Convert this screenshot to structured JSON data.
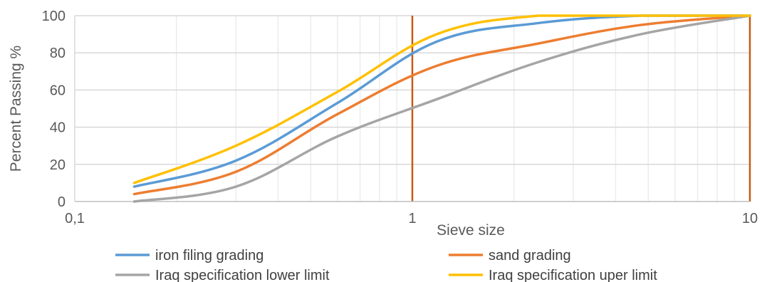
{
  "chart_data": {
    "type": "line",
    "title": "",
    "xlabel": "Sieve size",
    "ylabel": "Percent Passing %",
    "x_scale": "log",
    "xlim": [
      0.1,
      10
    ],
    "ylim": [
      0,
      100
    ],
    "x_ticks": [
      0.1,
      1,
      10
    ],
    "x_tick_labels": [
      "0,1",
      "1",
      "10"
    ],
    "y_ticks": [
      0,
      20,
      40,
      60,
      80,
      100
    ],
    "y_tick_labels": [
      "0",
      "20",
      "40",
      "60",
      "80",
      "100"
    ],
    "grid": "major and minor vertical, major horizontal",
    "legend_position": "bottom",
    "reference_lines": [
      {
        "x": 1,
        "color": "#c55a11"
      },
      {
        "x": 10,
        "color": "#c55a11"
      }
    ],
    "series": [
      {
        "name": "iron filing grading",
        "color": "#5b9bd5",
        "x": [
          0.15,
          0.3,
          0.6,
          1.18,
          2.36,
          4.75,
          10
        ],
        "y": [
          8,
          22,
          53,
          86,
          96,
          100,
          100
        ]
      },
      {
        "name": "sand grading",
        "color": "#ed7d31",
        "x": [
          0.15,
          0.3,
          0.6,
          1.18,
          2.36,
          4.75,
          10
        ],
        "y": [
          4,
          16,
          47,
          73,
          85,
          95,
          100
        ]
      },
      {
        "name": "Iraq specification lower limit",
        "color": "#a5a5a5",
        "x": [
          0.15,
          0.3,
          0.6,
          1.18,
          2.36,
          4.75,
          10
        ],
        "y": [
          0,
          8,
          35,
          55,
          75,
          90,
          100
        ]
      },
      {
        "name": "Iraq specification uper limit",
        "color": "#ffc000",
        "x": [
          0.15,
          0.3,
          0.6,
          1.18,
          2.36,
          4.75,
          10
        ],
        "y": [
          10,
          30,
          59,
          90,
          100,
          100,
          100
        ]
      }
    ]
  }
}
